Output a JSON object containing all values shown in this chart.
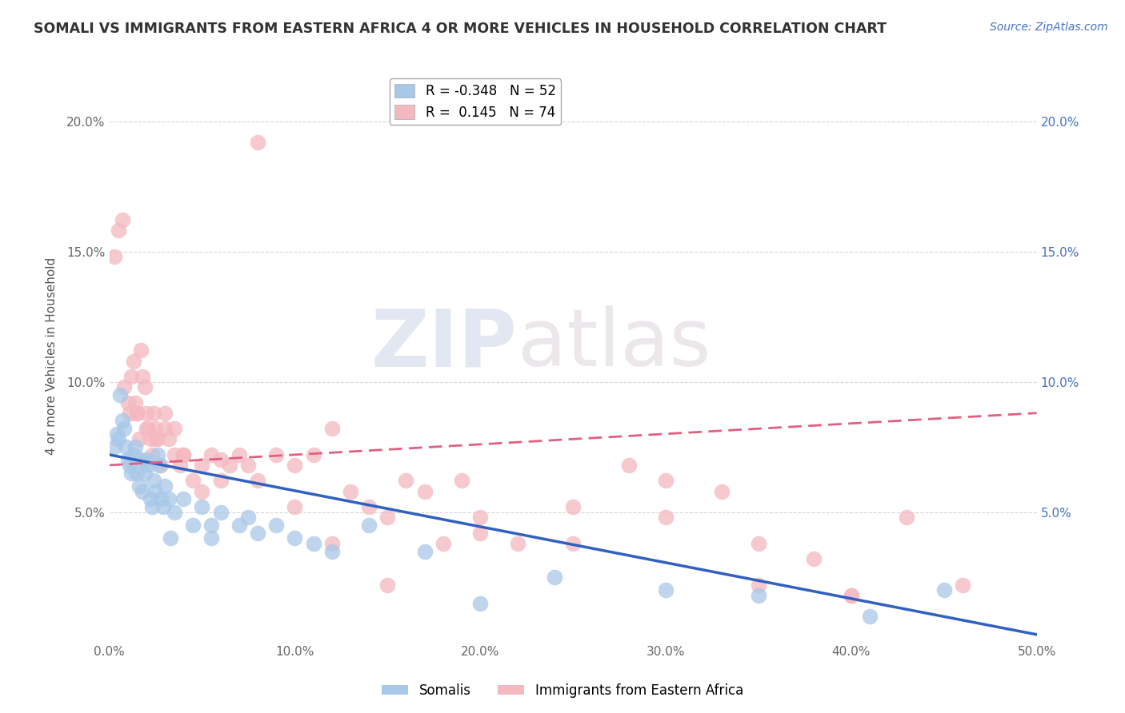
{
  "title": "SOMALI VS IMMIGRANTS FROM EASTERN AFRICA 4 OR MORE VEHICLES IN HOUSEHOLD CORRELATION CHART",
  "source": "Source: ZipAtlas.com",
  "ylabel": "4 or more Vehicles in Household",
  "legend_somali": "Somalis",
  "legend_eastern": "Immigrants from Eastern Africa",
  "r_somali": -0.348,
  "n_somali": 52,
  "r_eastern": 0.145,
  "n_eastern": 74,
  "somali_color": "#a8c8e8",
  "eastern_color": "#f4b8c0",
  "somali_line_color": "#3060c0",
  "eastern_line_color": "#e06080",
  "watermark_zip": "ZIP",
  "watermark_atlas": "atlas",
  "xlim": [
    0.0,
    50.0
  ],
  "ylim": [
    0.0,
    22.0
  ],
  "yticks": [
    0.0,
    5.0,
    10.0,
    15.0,
    20.0
  ],
  "ytick_labels_left": [
    "",
    "5.0%",
    "10.0%",
    "15.0%",
    "20.0%"
  ],
  "ytick_labels_right": [
    "",
    "5.0%",
    "10.0%",
    "15.0%",
    "20.0%"
  ],
  "xticks": [
    0.0,
    10.0,
    20.0,
    30.0,
    40.0,
    50.0
  ],
  "xtick_labels": [
    "0.0%",
    "10.0%",
    "20.0%",
    "30.0%",
    "40.0%",
    "50.0%"
  ],
  "somali_line_x0": 0.0,
  "somali_line_y0": 7.2,
  "somali_line_x1": 50.0,
  "somali_line_y1": 0.3,
  "eastern_line_x0": 0.0,
  "eastern_line_y0": 6.8,
  "eastern_line_x1": 50.0,
  "eastern_line_y1": 8.8,
  "somali_x": [
    0.3,
    0.4,
    0.5,
    0.6,
    0.7,
    0.8,
    0.9,
    1.0,
    1.1,
    1.2,
    1.3,
    1.4,
    1.5,
    1.6,
    1.7,
    1.8,
    1.9,
    2.0,
    2.1,
    2.2,
    2.3,
    2.4,
    2.5,
    2.6,
    2.7,
    2.8,
    2.9,
    3.0,
    3.2,
    3.5,
    4.0,
    4.5,
    5.0,
    5.5,
    6.0,
    7.0,
    8.0,
    9.0,
    10.0,
    11.0,
    12.0,
    14.0,
    17.0,
    20.0,
    24.0,
    30.0,
    35.0,
    41.0,
    45.0,
    5.5,
    7.5,
    3.3
  ],
  "somali_y": [
    7.5,
    8.0,
    7.8,
    9.5,
    8.5,
    8.2,
    7.5,
    7.0,
    6.8,
    6.5,
    7.2,
    7.5,
    6.5,
    6.0,
    7.0,
    5.8,
    6.5,
    7.0,
    6.8,
    5.5,
    5.2,
    6.2,
    5.8,
    7.2,
    6.8,
    5.5,
    5.2,
    6.0,
    5.5,
    5.0,
    5.5,
    4.5,
    5.2,
    4.0,
    5.0,
    4.5,
    4.2,
    4.5,
    4.0,
    3.8,
    3.5,
    4.5,
    3.5,
    1.5,
    2.5,
    2.0,
    1.8,
    1.0,
    2.0,
    4.5,
    4.8,
    4.0
  ],
  "eastern_x": [
    0.3,
    0.5,
    0.7,
    0.8,
    1.0,
    1.1,
    1.2,
    1.3,
    1.4,
    1.5,
    1.6,
    1.7,
    1.8,
    1.9,
    2.0,
    2.1,
    2.2,
    2.3,
    2.4,
    2.5,
    2.6,
    2.8,
    3.0,
    3.2,
    3.5,
    3.8,
    4.0,
    4.5,
    5.0,
    5.5,
    6.0,
    6.5,
    7.0,
    7.5,
    8.0,
    9.0,
    10.0,
    11.0,
    12.0,
    13.0,
    14.0,
    15.0,
    16.0,
    17.0,
    18.0,
    19.0,
    20.0,
    22.0,
    25.0,
    28.0,
    30.0,
    33.0,
    35.0,
    38.0,
    40.0,
    43.0,
    46.0,
    1.5,
    2.0,
    2.5,
    3.0,
    3.5,
    4.0,
    5.0,
    6.0,
    8.0,
    10.0,
    12.0,
    15.0,
    20.0,
    25.0,
    30.0,
    35.0,
    40.0
  ],
  "eastern_y": [
    14.8,
    15.8,
    16.2,
    9.8,
    9.2,
    8.8,
    10.2,
    10.8,
    9.2,
    8.8,
    7.8,
    11.2,
    10.2,
    9.8,
    8.8,
    8.2,
    7.8,
    7.2,
    8.8,
    8.2,
    7.8,
    6.8,
    8.2,
    7.8,
    7.2,
    6.8,
    7.2,
    6.2,
    5.8,
    7.2,
    6.2,
    6.8,
    7.2,
    6.8,
    6.2,
    7.2,
    6.8,
    7.2,
    8.2,
    5.8,
    5.2,
    4.8,
    6.2,
    5.8,
    3.8,
    6.2,
    4.8,
    3.8,
    5.2,
    6.8,
    6.2,
    5.8,
    2.2,
    3.2,
    1.8,
    4.8,
    2.2,
    8.8,
    8.2,
    7.8,
    8.8,
    8.2,
    7.2,
    6.8,
    7.0,
    19.2,
    5.2,
    3.8,
    2.2,
    4.2,
    3.8,
    4.8,
    3.8,
    1.8
  ]
}
